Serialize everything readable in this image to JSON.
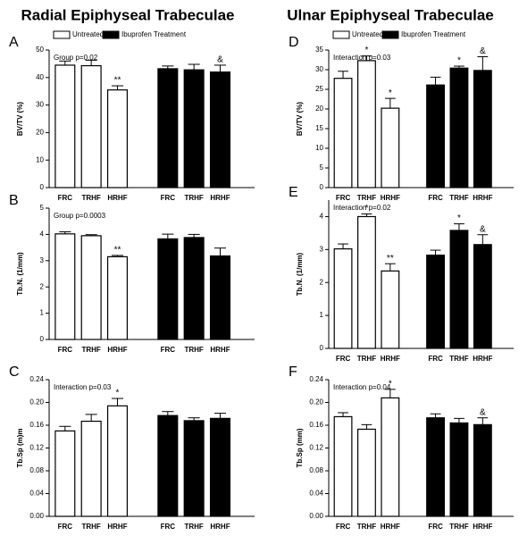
{
  "headings": [
    "Radial  Epiphyseal Trabeculae",
    "Ulnar Epiphyseal Trabeculae"
  ],
  "chart_data": [
    {
      "type": "bar",
      "panel": "A",
      "annotation": "Group p=0.02",
      "ylabel": "BV/TV (%)",
      "legend": true,
      "categories": [
        "FRC",
        "TRHF",
        "HRHF"
      ],
      "ylim": [
        0,
        50
      ],
      "yticks": [
        0,
        10,
        20,
        30,
        40,
        50
      ],
      "series": [
        {
          "name": "Untreated",
          "color": "#ffffff",
          "values": [
            44.5,
            44.3,
            35.5
          ],
          "errors": [
            1.5,
            2,
            1.5
          ],
          "significance": [
            null,
            null,
            "**"
          ]
        },
        {
          "name": "Ibuprofen Treatment",
          "color": "#000000",
          "values": [
            43.2,
            42.8,
            42
          ],
          "errors": [
            1,
            2,
            2.5
          ],
          "significance": [
            null,
            null,
            "&"
          ]
        }
      ]
    },
    {
      "type": "bar",
      "panel": "B",
      "annotation": "Group p=0.0003",
      "ylabel": "Tb.N. (1/mm)",
      "legend": false,
      "categories": [
        "FRC",
        "TRHF",
        "HRHF"
      ],
      "ylim": [
        0,
        5
      ],
      "yticks": [
        0,
        1,
        2,
        3,
        4,
        5
      ],
      "series": [
        {
          "name": "Untreated",
          "color": "#ffffff",
          "values": [
            4.02,
            3.95,
            3.15
          ],
          "errors": [
            0.08,
            0.04,
            0.05
          ],
          "significance": [
            null,
            null,
            "**"
          ]
        },
        {
          "name": "Ibuprofen Treatment",
          "color": "#000000",
          "values": [
            3.83,
            3.88,
            3.18
          ],
          "errors": [
            0.18,
            0.12,
            0.3
          ],
          "significance": [
            null,
            null,
            null
          ]
        }
      ]
    },
    {
      "type": "bar",
      "panel": "C",
      "annotation": "Interaction p=0.03",
      "ylabel": "Tb.Sp (m)m",
      "legend": false,
      "categories": [
        "FRC",
        "TRHF",
        "HRHF"
      ],
      "ylim": [
        0,
        0.24
      ],
      "yticks": [
        {
          "value": 0,
          "label": "0.00"
        },
        0.04,
        0.08,
        0.12,
        0.16,
        {
          "value": 0.2,
          "label": "0.20"
        },
        0.24
      ],
      "series": [
        {
          "name": "Untreated",
          "color": "#ffffff",
          "values": [
            0.15,
            0.167,
            0.194
          ],
          "errors": [
            0.008,
            0.012,
            0.013
          ],
          "significance": [
            null,
            null,
            "*"
          ]
        },
        {
          "name": "Ibuprofen Treatment",
          "color": "#000000",
          "values": [
            0.177,
            0.168,
            0.172
          ],
          "errors": [
            0.007,
            0.005,
            0.009
          ],
          "significance": [
            null,
            null,
            null
          ]
        }
      ]
    },
    {
      "type": "bar",
      "panel": "D",
      "annotation": "Interaction p=0.03",
      "ylabel": "BV/TV (%)",
      "legend": true,
      "categories": [
        "FRC",
        "TRHF",
        "HRHF"
      ],
      "ylim": [
        0,
        35
      ],
      "yticks": [
        0,
        5,
        10,
        15,
        20,
        25,
        30,
        35
      ],
      "series": [
        {
          "name": "Untreated",
          "color": "#ffffff",
          "values": [
            27.8,
            32.3,
            20.2
          ],
          "errors": [
            1.8,
            1.2,
            2.5
          ],
          "significance": [
            null,
            "*",
            "*"
          ]
        },
        {
          "name": "Ibuprofen Treatment",
          "color": "#000000",
          "values": [
            26.1,
            30.4,
            29.8
          ],
          "errors": [
            2,
            0.5,
            3.5
          ],
          "significance": [
            null,
            "*",
            "&"
          ]
        }
      ]
    },
    {
      "type": "bar",
      "panel": "E",
      "annotation": "Interaction p=0.02",
      "ylabel": "Tb.N. (1/mm)",
      "legend": false,
      "categories": [
        "FRC",
        "TRHF",
        "HRHF"
      ],
      "ylim": [
        0,
        4.5
      ],
      "yticks": [
        0,
        1,
        2,
        3,
        4
      ],
      "series": [
        {
          "name": "Untreated",
          "color": "#ffffff",
          "values": [
            3.02,
            4.0,
            2.35
          ],
          "errors": [
            0.15,
            0.08,
            0.22
          ],
          "significance": [
            null,
            "*",
            "**"
          ]
        },
        {
          "name": "Ibuprofen Treatment",
          "color": "#000000",
          "values": [
            2.83,
            3.58,
            3.15
          ],
          "errors": [
            0.15,
            0.2,
            0.3
          ],
          "significance": [
            null,
            "*",
            "&"
          ]
        }
      ]
    },
    {
      "type": "bar",
      "panel": "F",
      "annotation": "Interaction p=0.04",
      "ylabel": "Tb.Sp (mm)",
      "legend": false,
      "categories": [
        "FRC",
        "TRHF",
        "HRHF"
      ],
      "ylim": [
        0,
        0.24
      ],
      "yticks": [
        {
          "value": 0,
          "label": "0.00"
        },
        0.04,
        0.08,
        0.12,
        0.16,
        {
          "value": 0.2,
          "label": "0.20"
        },
        0.24
      ],
      "series": [
        {
          "name": "Untreated",
          "color": "#ffffff",
          "values": [
            0.175,
            0.153,
            0.208
          ],
          "errors": [
            0.007,
            0.008,
            0.015
          ],
          "significance": [
            null,
            null,
            "*"
          ]
        },
        {
          "name": "Ibuprofen Treatment",
          "color": "#000000",
          "values": [
            0.173,
            0.164,
            0.161
          ],
          "errors": [
            0.007,
            0.008,
            0.012
          ],
          "significance": [
            null,
            null,
            "&"
          ]
        }
      ]
    }
  ]
}
